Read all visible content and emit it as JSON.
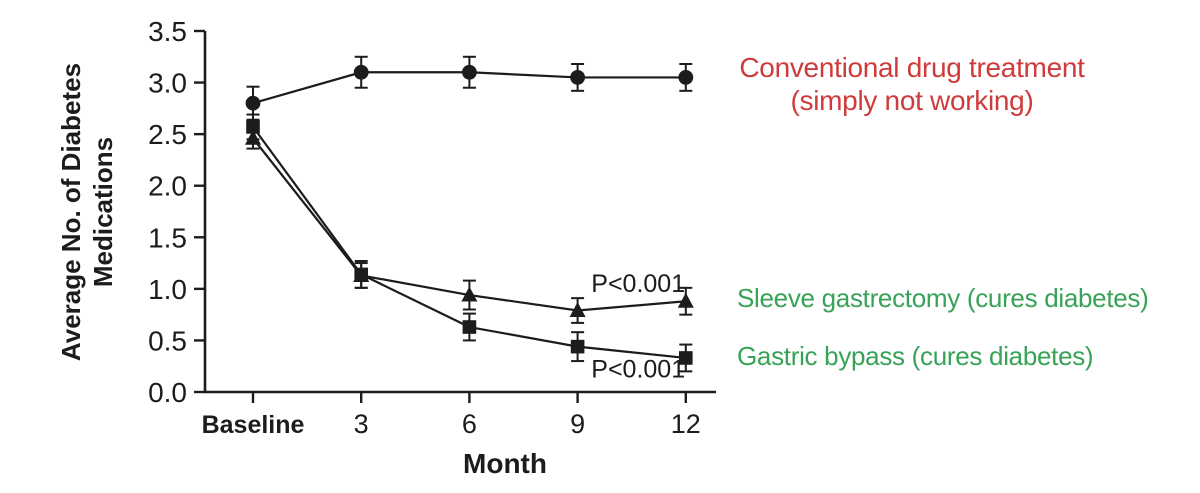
{
  "page": {
    "background": "#ffffff"
  },
  "colors": {
    "ink": "#1d1b1c",
    "conventional_label": "#cf3b3b",
    "surgery_label": "#38a257"
  },
  "chart_data": {
    "type": "line",
    "title": "",
    "xlabel": "Month",
    "ylabel_lines": [
      "Average No. of Diabetes",
      "Medications"
    ],
    "categories": [
      "Baseline",
      "3",
      "6",
      "9",
      "12"
    ],
    "ylim": [
      0,
      3.5
    ],
    "y_tick_step": 0.5,
    "grid": false,
    "legend_position": "right-annotations",
    "series": [
      {
        "name": "Conventional drug treatment",
        "marker": "circle",
        "values": [
          2.8,
          3.1,
          3.1,
          3.05,
          3.05
        ],
        "errors": [
          0.16,
          0.15,
          0.15,
          0.13,
          0.13
        ]
      },
      {
        "name": "Sleeve gastrectomy",
        "marker": "triangle",
        "values": [
          2.46,
          1.13,
          0.94,
          0.79,
          0.88
        ],
        "errors": [
          0.1,
          0.12,
          0.14,
          0.12,
          0.13
        ]
      },
      {
        "name": "Gastric bypass",
        "marker": "square",
        "values": [
          2.57,
          1.14,
          0.63,
          0.44,
          0.33
        ],
        "errors": [
          0.12,
          0.13,
          0.13,
          0.14,
          0.13
        ]
      }
    ],
    "annotations": [
      {
        "text": "P<0.001",
        "x": 3.56,
        "y": 0.97
      },
      {
        "text": "P<0.001",
        "x": 3.56,
        "y": 0.14
      }
    ]
  },
  "side_labels": {
    "conventional": {
      "line1": "Conventional drug treatment",
      "line2": "(simply not working)"
    },
    "sleeve": {
      "text": "Sleeve gastrectomy (cures diabetes)"
    },
    "gastric": {
      "text": "Gastric bypass (cures diabetes)"
    }
  }
}
